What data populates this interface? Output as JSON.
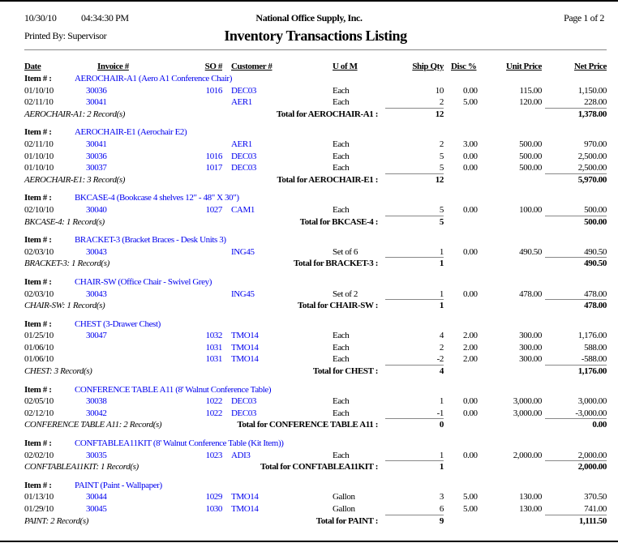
{
  "header": {
    "date": "10/30/10",
    "time": "04:34:30 PM",
    "company": "National Office Supply, Inc.",
    "page": "Page 1 of 2",
    "printed_by": "Printed By: Supervisor",
    "title": "Inventory Transactions Listing"
  },
  "columns": {
    "date": "Date",
    "invoice": "Invoice #",
    "so": "SO #",
    "customer": "Customer #",
    "uom": "U of M",
    "ship_qty": "Ship Qty",
    "disc": "Disc %",
    "unit_price": "Unit Price",
    "net_price": "Net Price"
  },
  "item_label": "Item # :",
  "groups": [
    {
      "item": "AEROCHAIR-A1 (Aero A1 Conference Chair)",
      "summary": "AEROCHAIR-A1: 2 Record(s)",
      "total_label": "Total for AEROCHAIR-A1 :",
      "total_qty": "12",
      "total_net": "1,378.00",
      "rows": [
        {
          "date": "01/10/10",
          "invoice": "30036",
          "so": "1016",
          "customer": "DEC03",
          "uom": "Each",
          "qty": "10",
          "disc": "0.00",
          "unit": "115.00",
          "net": "1,150.00"
        },
        {
          "date": "02/11/10",
          "invoice": "30041",
          "so": "",
          "customer": "AER1",
          "uom": "Each",
          "qty": "2",
          "disc": "5.00",
          "unit": "120.00",
          "net": "228.00"
        }
      ]
    },
    {
      "item": "AEROCHAIR-E1 (Aerochair E2)",
      "summary": "AEROCHAIR-E1: 3 Record(s)",
      "total_label": "Total for AEROCHAIR-E1 :",
      "total_qty": "12",
      "total_net": "5,970.00",
      "rows": [
        {
          "date": "02/11/10",
          "invoice": "30041",
          "so": "",
          "customer": "AER1",
          "uom": "Each",
          "qty": "2",
          "disc": "3.00",
          "unit": "500.00",
          "net": "970.00"
        },
        {
          "date": "01/10/10",
          "invoice": "30036",
          "so": "1016",
          "customer": "DEC03",
          "uom": "Each",
          "qty": "5",
          "disc": "0.00",
          "unit": "500.00",
          "net": "2,500.00"
        },
        {
          "date": "01/10/10",
          "invoice": "30037",
          "so": "1017",
          "customer": "DEC03",
          "uom": "Each",
          "qty": "5",
          "disc": "0.00",
          "unit": "500.00",
          "net": "2,500.00"
        }
      ]
    },
    {
      "item": "BKCASE-4 (Bookcase 4 shelves 12\" - 48\" X 30\")",
      "summary": "BKCASE-4: 1 Record(s)",
      "total_label": "Total for BKCASE-4 :",
      "total_qty": "5",
      "total_net": "500.00",
      "rows": [
        {
          "date": "02/10/10",
          "invoice": "30040",
          "so": "1027",
          "customer": "CAM1",
          "uom": "Each",
          "qty": "5",
          "disc": "0.00",
          "unit": "100.00",
          "net": "500.00"
        }
      ]
    },
    {
      "item": "BRACKET-3 (Bracket Braces - Desk Units 3)",
      "summary": "BRACKET-3: 1 Record(s)",
      "total_label": "Total for BRACKET-3 :",
      "total_qty": "1",
      "total_net": "490.50",
      "rows": [
        {
          "date": "02/03/10",
          "invoice": "30043",
          "so": "",
          "customer": "ING45",
          "uom": "Set of 6",
          "qty": "1",
          "disc": "0.00",
          "unit": "490.50",
          "net": "490.50"
        }
      ]
    },
    {
      "item": "CHAIR-SW (Office Chair - Swivel Grey)",
      "summary": "CHAIR-SW: 1 Record(s)",
      "total_label": "Total for CHAIR-SW :",
      "total_qty": "1",
      "total_net": "478.00",
      "rows": [
        {
          "date": "02/03/10",
          "invoice": "30043",
          "so": "",
          "customer": "ING45",
          "uom": "Set of 2",
          "qty": "1",
          "disc": "0.00",
          "unit": "478.00",
          "net": "478.00"
        }
      ]
    },
    {
      "item": "CHEST (3-Drawer Chest)",
      "summary": "CHEST: 3 Record(s)",
      "total_label": "Total for CHEST :",
      "total_qty": "4",
      "total_net": "1,176.00",
      "rows": [
        {
          "date": "01/25/10",
          "invoice": "30047",
          "so": "1032",
          "customer": "TMO14",
          "uom": "Each",
          "qty": "4",
          "disc": "2.00",
          "unit": "300.00",
          "net": "1,176.00"
        },
        {
          "date": "01/06/10",
          "invoice": "",
          "so": "1031",
          "customer": "TMO14",
          "uom": "Each",
          "qty": "2",
          "disc": "2.00",
          "unit": "300.00",
          "net": "588.00"
        },
        {
          "date": "01/06/10",
          "invoice": "",
          "so": "1031",
          "customer": "TMO14",
          "uom": "Each",
          "qty": "-2",
          "disc": "2.00",
          "unit": "300.00",
          "net": "-588.00"
        }
      ]
    },
    {
      "item": "CONFERENCE TABLE A11 (8' Walnut Conference Table)",
      "summary": "CONFERENCE TABLE A11: 2 Record(s)",
      "total_label": "Total for CONFERENCE TABLE A11 :",
      "total_qty": "0",
      "total_net": "0.00",
      "rows": [
        {
          "date": "02/05/10",
          "invoice": "30038",
          "so": "1022",
          "customer": "DEC03",
          "uom": "Each",
          "qty": "1",
          "disc": "0.00",
          "unit": "3,000.00",
          "net": "3,000.00"
        },
        {
          "date": "02/12/10",
          "invoice": "30042",
          "so": "1022",
          "customer": "DEC03",
          "uom": "Each",
          "qty": "-1",
          "disc": "0.00",
          "unit": "3,000.00",
          "net": "-3,000.00"
        }
      ]
    },
    {
      "item": "CONFTABLEA11KIT (8' Walnut Conference Table (Kit Item))",
      "summary": "CONFTABLEA11KIT: 1 Record(s)",
      "total_label": "Total for CONFTABLEA11KIT :",
      "total_qty": "1",
      "total_net": "2,000.00",
      "rows": [
        {
          "date": "02/02/10",
          "invoice": "30035",
          "so": "1023",
          "customer": "ADI3",
          "uom": "Each",
          "qty": "1",
          "disc": "0.00",
          "unit": "2,000.00",
          "net": "2,000.00"
        }
      ]
    },
    {
      "item": "PAINT (Paint - Wallpaper)",
      "summary": "PAINT: 2 Record(s)",
      "total_label": "Total for PAINT :",
      "total_qty": "9",
      "total_net": "1,111.50",
      "rows": [
        {
          "date": "01/13/10",
          "invoice": "30044",
          "so": "1029",
          "customer": "TMO14",
          "uom": "Gallon",
          "qty": "3",
          "disc": "5.00",
          "unit": "130.00",
          "net": "370.50"
        },
        {
          "date": "01/29/10",
          "invoice": "30045",
          "so": "1030",
          "customer": "TMO14",
          "uom": "Gallon",
          "qty": "6",
          "disc": "5.00",
          "unit": "130.00",
          "net": "741.00"
        }
      ]
    }
  ],
  "colors": {
    "link": "#0000ee",
    "rule": "#888888"
  }
}
